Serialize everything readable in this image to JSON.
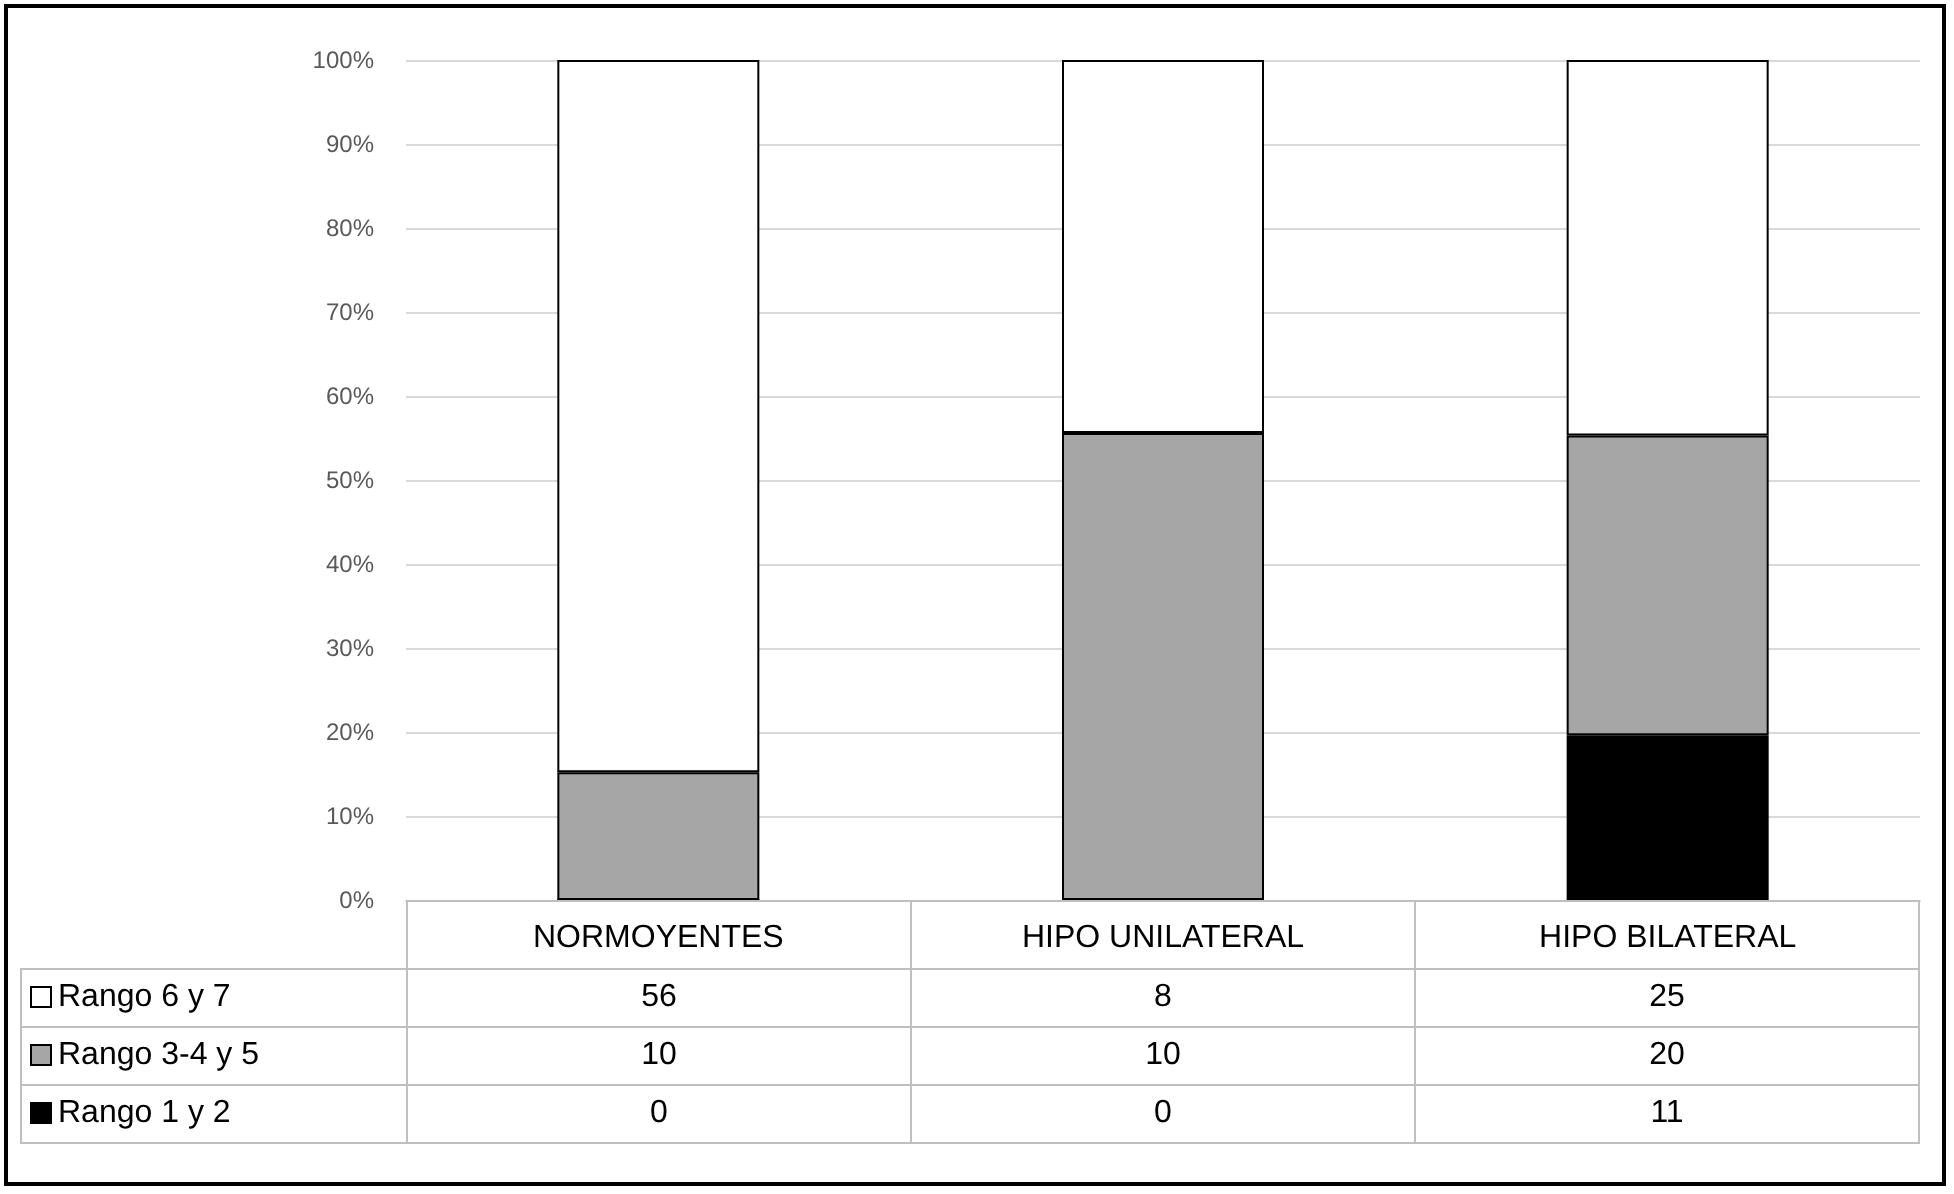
{
  "chart_data": [
    {
      "type": "bar",
      "stacked": true,
      "categories": [
        "NORMOYENTES",
        "HIPO UNILATERAL",
        "HIPO BILATERAL"
      ],
      "series": [
        {
          "color": "#000000",
          "values": [
            0,
            0,
            19.6
          ]
        },
        {
          "color": "#a6a6a6",
          "values": [
            15.2,
            55.6,
            35.7
          ]
        },
        {
          "color": "#ffffff",
          "values": [
            84.8,
            44.4,
            44.7
          ]
        }
      ],
      "ylim": [
        0,
        100
      ],
      "yticks": [
        {
          "value": 0,
          "label": "0%"
        },
        {
          "value": 10,
          "label": "10%"
        },
        {
          "value": 20,
          "label": "20%"
        },
        {
          "value": 30,
          "label": "30%"
        },
        {
          "value": 40,
          "label": "40%"
        },
        {
          "value": 50,
          "label": "50%"
        },
        {
          "value": 60,
          "label": "60%"
        },
        {
          "value": 70,
          "label": "70%"
        },
        {
          "value": 80,
          "label": "80%"
        },
        {
          "value": 90,
          "label": "90%"
        },
        {
          "value": 100,
          "label": "100%"
        }
      ],
      "grid": "y"
    },
    {
      "type": "heatmap",
      "categories": [
        null,
        null,
        null
      ],
      "y_categories": [
        "Rango 6 y 7",
        "Rango 3-4 y 5",
        "Rango 1 y 2"
      ],
      "cells": [
        [
          56,
          8,
          25
        ],
        [
          10,
          10,
          20
        ],
        [
          0,
          0,
          11
        ]
      ],
      "data_labels": true
    }
  ]
}
